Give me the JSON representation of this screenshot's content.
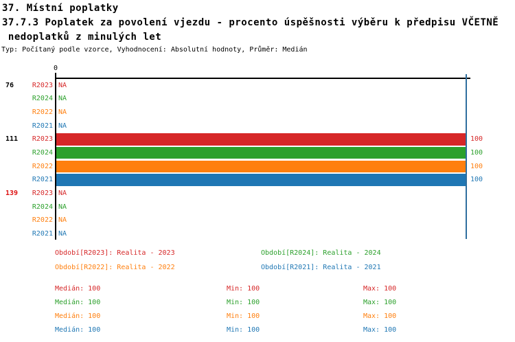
{
  "title": {
    "line1": "37. Místní poplatky",
    "line2": "37.7.3 Poplatek za povolení vjezdu - procento úspěšnosti výběru k předpisu VČETNĚ",
    "line3": " nedoplatků z minulých let",
    "meta": "Typ: Počítaný podle vzorce, Vyhodnocení: Absolutní hodnoty, Průměr: Medián"
  },
  "colors": {
    "R2023": "#d62728",
    "R2024": "#2ca02c",
    "R2022": "#ff7f0e",
    "R2021": "#1f77b4",
    "axis": "#000000",
    "median_line": "#2e6e9e",
    "group_label_default": "#000000",
    "group_label_highlight": "#dd1111"
  },
  "chart_data": {
    "type": "bar",
    "orientation": "horizontal",
    "value_axis": {
      "tick_label": "0",
      "min": 0,
      "max": 100
    },
    "median_marker_value": 100,
    "series": [
      "R2023",
      "R2024",
      "R2022",
      "R2021"
    ],
    "groups": [
      {
        "label": "76",
        "highlight": false,
        "rows": [
          {
            "series": "R2023",
            "value": null,
            "display": "NA"
          },
          {
            "series": "R2024",
            "value": null,
            "display": "NA"
          },
          {
            "series": "R2022",
            "value": null,
            "display": "NA"
          },
          {
            "series": "R2021",
            "value": null,
            "display": "NA"
          }
        ]
      },
      {
        "label": "111",
        "highlight": false,
        "rows": [
          {
            "series": "R2023",
            "value": 100,
            "display": "100"
          },
          {
            "series": "R2024",
            "value": 100,
            "display": "100"
          },
          {
            "series": "R2022",
            "value": 100,
            "display": "100"
          },
          {
            "series": "R2021",
            "value": 100,
            "display": "100"
          }
        ]
      },
      {
        "label": "139",
        "highlight": true,
        "rows": [
          {
            "series": "R2023",
            "value": null,
            "display": "NA"
          },
          {
            "series": "R2024",
            "value": null,
            "display": "NA"
          },
          {
            "series": "R2022",
            "value": null,
            "display": "NA"
          },
          {
            "series": "R2021",
            "value": null,
            "display": "NA"
          }
        ]
      }
    ]
  },
  "legend": [
    {
      "series": "R2023",
      "label": "Období[R2023]: Realita - 2023",
      "col": 0,
      "row": 0
    },
    {
      "series": "R2024",
      "label": "Období[R2024]: Realita - 2024",
      "col": 1,
      "row": 0
    },
    {
      "series": "R2022",
      "label": "Období[R2022]: Realita - 2022",
      "col": 0,
      "row": 1
    },
    {
      "series": "R2021",
      "label": "Období[R2021]: Realita - 2021",
      "col": 1,
      "row": 1
    }
  ],
  "stats": [
    {
      "series": "R2023",
      "cells": [
        "Medián: 100",
        "Min: 100",
        "Max: 100"
      ]
    },
    {
      "series": "R2024",
      "cells": [
        "Medián: 100",
        "Min: 100",
        "Max: 100"
      ]
    },
    {
      "series": "R2022",
      "cells": [
        "Medián: 100",
        "Min: 100",
        "Max: 100"
      ]
    },
    {
      "series": "R2021",
      "cells": [
        "Medián: 100",
        "Min: 100",
        "Max: 100"
      ]
    }
  ]
}
